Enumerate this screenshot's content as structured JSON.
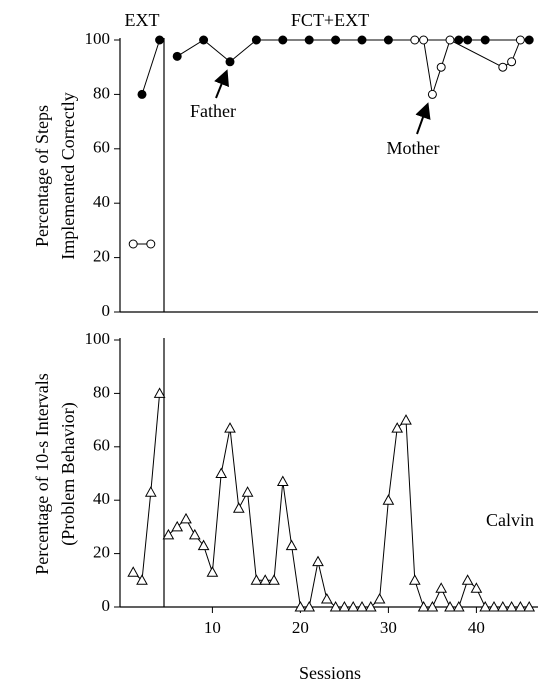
{
  "chart_data": [
    {
      "type": "line",
      "ylabel": [
        "Percentage of Steps",
        "Implemented Correctly"
      ],
      "xlim": [
        -0.5,
        47
      ],
      "ylim": [
        0,
        100
      ],
      "yticks": [
        0,
        20,
        40,
        60,
        80,
        100
      ],
      "phase_change": 4.5,
      "annotations": [
        "EXT",
        "FCT+EXT",
        "Father",
        "Mother"
      ],
      "series": [
        {
          "name": "Father",
          "marker": "filled-circle",
          "color": "#000000",
          "x": [
            2,
            4,
            6,
            9,
            12,
            15,
            18,
            21,
            24,
            27,
            30,
            38,
            39,
            41,
            46
          ],
          "values": [
            80,
            100,
            94,
            100,
            92,
            100,
            100,
            100,
            100,
            100,
            100,
            100,
            100,
            100,
            100
          ]
        },
        {
          "name": "Mother",
          "marker": "open-circle",
          "color": "#000000",
          "x": [
            1,
            3,
            33,
            34,
            35,
            36,
            37,
            43,
            44,
            45
          ],
          "values": [
            25,
            25,
            100,
            100,
            80,
            90,
            100,
            90,
            92,
            100
          ]
        }
      ]
    },
    {
      "type": "line",
      "ylabel": [
        "Percentage of 10-s Intervals",
        "(Problem Behavior)"
      ],
      "xlabel": "Sessions",
      "xlim": [
        -0.5,
        47
      ],
      "ylim": [
        0,
        100
      ],
      "yticks": [
        0,
        20,
        40,
        60,
        80,
        100
      ],
      "xticks": [
        10,
        20,
        30,
        40
      ],
      "phase_change": 4.5,
      "annotations": [
        "Calvin"
      ],
      "series": [
        {
          "name": "Calvin",
          "marker": "open-triangle",
          "color": "#000000",
          "x": [
            1,
            2,
            3,
            4,
            5,
            6,
            7,
            8,
            9,
            10,
            11,
            12,
            13,
            14,
            15,
            16,
            17,
            18,
            19,
            20,
            21,
            22,
            23,
            24,
            25,
            26,
            27,
            28,
            29,
            30,
            31,
            32,
            33,
            34,
            35,
            36,
            37,
            38,
            39,
            40,
            41,
            42,
            43,
            44,
            45,
            46
          ],
          "values": [
            13,
            10,
            43,
            80,
            27,
            30,
            33,
            27,
            23,
            13,
            50,
            67,
            37,
            43,
            10,
            10,
            10,
            47,
            23,
            0,
            0,
            17,
            3,
            0,
            0,
            0,
            0,
            0,
            3,
            40,
            67,
            70,
            10,
            0,
            0,
            7,
            0,
            0,
            10,
            7,
            0,
            0,
            0,
            0,
            0,
            0
          ]
        }
      ]
    }
  ]
}
